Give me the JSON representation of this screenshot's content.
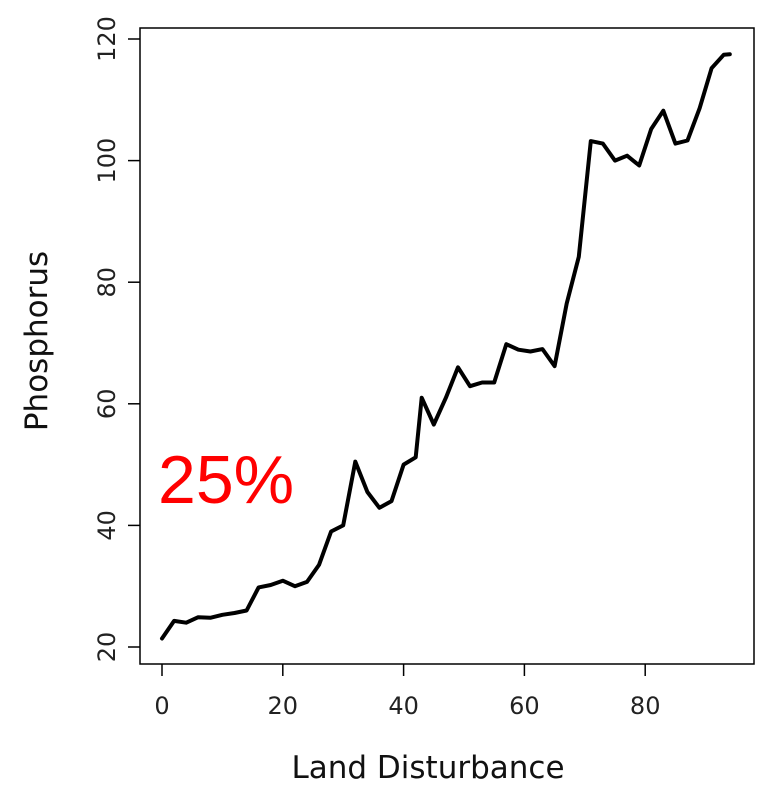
{
  "chart_data": {
    "type": "line",
    "title": "",
    "xlabel": "Land Disturbance",
    "ylabel": "Phosphorus",
    "xlim": [
      0,
      94
    ],
    "ylim": [
      20,
      120
    ],
    "x_ticks": [
      0,
      20,
      40,
      60,
      80
    ],
    "y_ticks": [
      20,
      40,
      60,
      80,
      100,
      120
    ],
    "grid": false,
    "series": [
      {
        "color": "#000000",
        "x": [
          0,
          2,
          4,
          6,
          8,
          10,
          12,
          14,
          16,
          18,
          20,
          22,
          24,
          26,
          28,
          30,
          32,
          34,
          36,
          38,
          40,
          42,
          43,
          45,
          47,
          49,
          51,
          53,
          55,
          57,
          59,
          61,
          63,
          65,
          67,
          69,
          71,
          73,
          75,
          77,
          79,
          81,
          83,
          85,
          87,
          89,
          91,
          93,
          94
        ],
        "y": [
          21.4,
          24.3,
          24.0,
          24.9,
          24.8,
          25.3,
          25.6,
          26.0,
          29.8,
          30.2,
          30.9,
          30.0,
          30.7,
          33.5,
          39.0,
          40.0,
          50.5,
          45.5,
          42.9,
          44.0,
          50.0,
          51.2,
          61.0,
          56.6,
          61.0,
          66.0,
          62.9,
          63.5,
          63.5,
          69.8,
          68.9,
          68.6,
          69.0,
          66.2,
          76.5,
          84.2,
          103.2,
          102.8,
          100.0,
          100.8,
          99.2,
          105.2,
          108.2,
          102.8,
          103.3,
          108.6,
          115.2,
          117.4,
          117.5
        ]
      }
    ]
  },
  "annotation": {
    "text": "25%",
    "color": "#ff0000"
  }
}
